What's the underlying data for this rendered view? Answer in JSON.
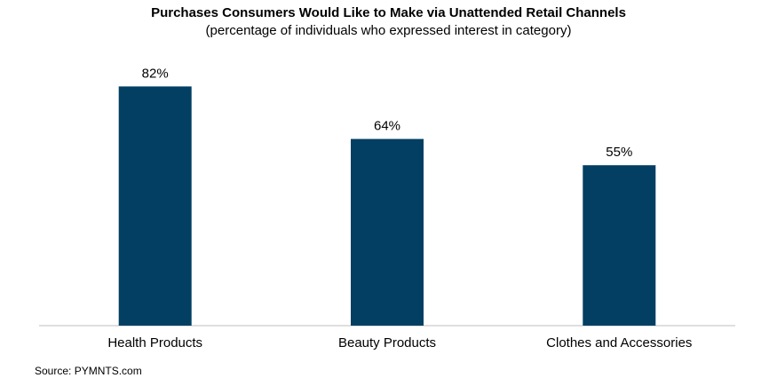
{
  "chart_data": {
    "type": "bar",
    "title": "Purchases Consumers Would Like to Make via Unattended Retail Channels",
    "subtitle": "(percentage of individuals who expressed interest in category)",
    "categories": [
      "Health Products",
      "Beauty Products",
      "Clothes and Accessories"
    ],
    "values": [
      82,
      64,
      55
    ],
    "value_labels": [
      "82%",
      "64%",
      "55%"
    ],
    "unit": "%",
    "xlabel": "",
    "ylabel": "",
    "ylim": [
      0,
      100
    ],
    "grid": false,
    "legend": "none",
    "bar_color": "#023f63",
    "axis_color": "#bfbfbf"
  },
  "source": "Source: PYMNTS.com"
}
